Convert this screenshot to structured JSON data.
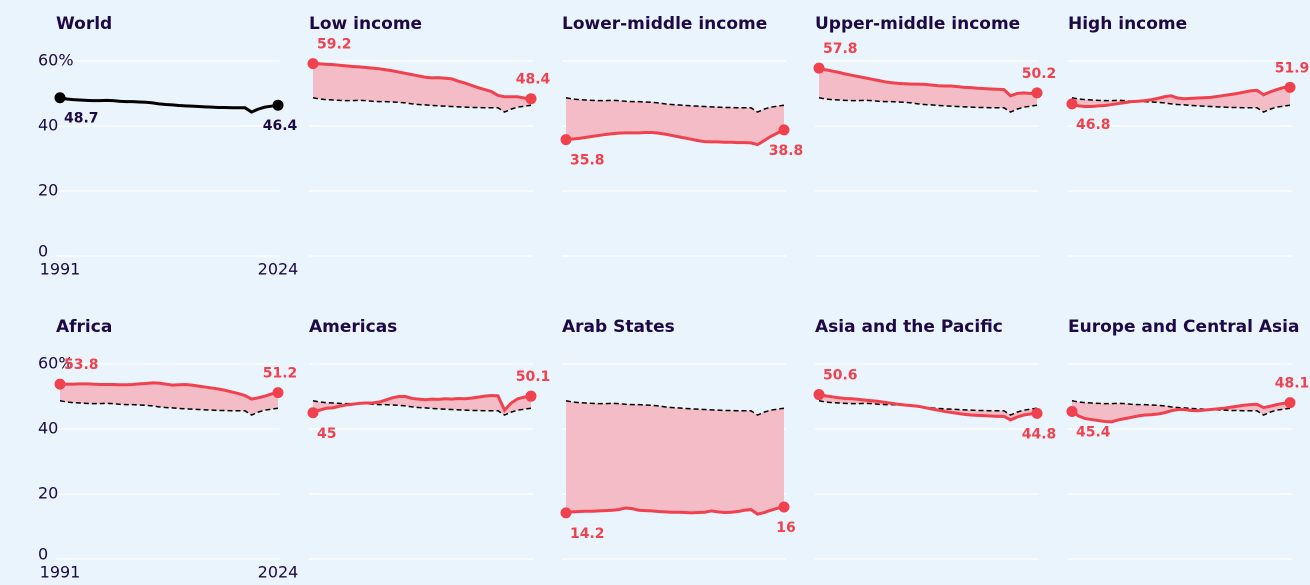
{
  "chart_data": [
    {
      "type": "line",
      "title": "World",
      "tick_labels": true,
      "ylim": [
        0,
        60
      ],
      "yticks": [
        0,
        20,
        40,
        {
          "value": 60,
          "label": "60%"
        }
      ],
      "xlim": [
        1991,
        2024
      ],
      "xticks": [
        1991,
        2024
      ],
      "x": [
        1991,
        1992,
        1993,
        1994,
        1995,
        1996,
        1997,
        1998,
        1999,
        2000,
        2001,
        2002,
        2003,
        2004,
        2005,
        2006,
        2007,
        2008,
        2009,
        2010,
        2011,
        2012,
        2013,
        2014,
        2015,
        2016,
        2017,
        2018,
        2019,
        2020,
        2021,
        2022,
        2023,
        2024
      ],
      "series": [
        {
          "color": "#000000",
          "values": [
            48.7,
            48.3,
            48.1,
            48.0,
            47.9,
            47.8,
            47.8,
            47.9,
            47.8,
            47.6,
            47.5,
            47.5,
            47.4,
            47.3,
            47.1,
            46.8,
            46.6,
            46.5,
            46.3,
            46.2,
            46.1,
            46.0,
            45.9,
            45.8,
            45.7,
            45.7,
            45.6,
            45.6,
            45.6,
            44.3,
            45.2,
            45.8,
            46.1,
            46.4
          ]
        }
      ]
    },
    {
      "type": "line",
      "title": "Low income",
      "reference": true,
      "fill": true,
      "ylim": [
        0,
        60
      ],
      "yticks": [
        0,
        20,
        40,
        60
      ],
      "xlim": [
        1991,
        2024
      ],
      "x": [
        1991,
        1992,
        1993,
        1994,
        1995,
        1996,
        1997,
        1998,
        1999,
        2000,
        2001,
        2002,
        2003,
        2004,
        2005,
        2006,
        2007,
        2008,
        2009,
        2010,
        2011,
        2012,
        2013,
        2014,
        2015,
        2016,
        2017,
        2018,
        2019,
        2020,
        2021,
        2022,
        2023,
        2024
      ],
      "series": [
        {
          "color": "#f0424e",
          "values": [
            59.2,
            59.1,
            59.0,
            58.9,
            58.7,
            58.5,
            58.3,
            58.2,
            58.0,
            57.8,
            57.6,
            57.3,
            57.0,
            56.6,
            56.2,
            55.8,
            55.4,
            55.0,
            54.8,
            54.9,
            54.7,
            54.5,
            53.8,
            53.2,
            52.5,
            51.8,
            51.2,
            50.6,
            49.4,
            49.0,
            49.0,
            49.0,
            48.6,
            48.4
          ]
        }
      ]
    },
    {
      "type": "line",
      "title": "Lower-middle income",
      "reference": true,
      "fill": true,
      "ylim": [
        0,
        60
      ],
      "yticks": [
        0,
        20,
        40,
        60
      ],
      "xlim": [
        1991,
        2024
      ],
      "x": [
        1991,
        1992,
        1993,
        1994,
        1995,
        1996,
        1997,
        1998,
        1999,
        2000,
        2001,
        2002,
        2003,
        2004,
        2005,
        2006,
        2007,
        2008,
        2009,
        2010,
        2011,
        2012,
        2013,
        2014,
        2015,
        2016,
        2017,
        2018,
        2019,
        2020,
        2021,
        2022,
        2023,
        2024
      ],
      "series": [
        {
          "color": "#f0424e",
          "values": [
            35.8,
            36.0,
            36.2,
            36.5,
            36.8,
            37.1,
            37.4,
            37.6,
            37.8,
            37.9,
            37.9,
            37.9,
            38.0,
            38.0,
            37.8,
            37.5,
            37.1,
            36.7,
            36.3,
            35.9,
            35.5,
            35.2,
            35.1,
            35.1,
            35.0,
            35.0,
            34.9,
            34.9,
            34.8,
            34.3,
            35.5,
            36.8,
            37.8,
            38.8
          ]
        }
      ]
    },
    {
      "type": "line",
      "title": "Upper-middle income",
      "reference": true,
      "fill": true,
      "ylim": [
        0,
        60
      ],
      "yticks": [
        0,
        20,
        40,
        60
      ],
      "xlim": [
        1991,
        2024
      ],
      "x": [
        1991,
        1992,
        1993,
        1994,
        1995,
        1996,
        1997,
        1998,
        1999,
        2000,
        2001,
        2002,
        2003,
        2004,
        2005,
        2006,
        2007,
        2008,
        2009,
        2010,
        2011,
        2012,
        2013,
        2014,
        2015,
        2016,
        2017,
        2018,
        2019,
        2020,
        2021,
        2022,
        2023,
        2024
      ],
      "series": [
        {
          "color": "#f0424e",
          "values": [
            57.8,
            57.3,
            56.9,
            56.5,
            56.0,
            55.6,
            55.2,
            54.8,
            54.4,
            54.0,
            53.6,
            53.3,
            53.1,
            53.0,
            52.9,
            52.9,
            52.8,
            52.6,
            52.4,
            52.3,
            52.3,
            52.1,
            51.9,
            51.8,
            51.6,
            51.5,
            51.4,
            51.3,
            51.2,
            49.3,
            50.0,
            50.2,
            50.0,
            50.2
          ]
        }
      ]
    },
    {
      "type": "line",
      "title": "High income",
      "reference": true,
      "fill": true,
      "ylim": [
        0,
        60
      ],
      "yticks": [
        0,
        20,
        40,
        60
      ],
      "xlim": [
        1991,
        2024
      ],
      "x": [
        1991,
        1992,
        1993,
        1994,
        1995,
        1996,
        1997,
        1998,
        1999,
        2000,
        2001,
        2002,
        2003,
        2004,
        2005,
        2006,
        2007,
        2008,
        2009,
        2010,
        2011,
        2012,
        2013,
        2014,
        2015,
        2016,
        2017,
        2018,
        2019,
        2020,
        2021,
        2022,
        2023,
        2024
      ],
      "series": [
        {
          "color": "#f0424e",
          "values": [
            46.8,
            46.2,
            46.0,
            46.0,
            46.2,
            46.3,
            46.6,
            46.9,
            47.2,
            47.5,
            47.6,
            47.8,
            48.1,
            48.5,
            49.0,
            49.3,
            48.6,
            48.4,
            48.5,
            48.6,
            48.7,
            48.8,
            49.1,
            49.4,
            49.7,
            50.0,
            50.4,
            50.8,
            51.0,
            49.6,
            50.5,
            51.2,
            51.8,
            51.9
          ]
        }
      ]
    },
    {
      "type": "line",
      "title": "Africa",
      "tick_labels": true,
      "reference": true,
      "fill": true,
      "ylim": [
        0,
        60
      ],
      "yticks": [
        0,
        20,
        40,
        {
          "value": 60,
          "label": "60%"
        }
      ],
      "xlim": [
        1991,
        2024
      ],
      "xticks": [
        1991,
        2024
      ],
      "x": [
        1991,
        1992,
        1993,
        1994,
        1995,
        1996,
        1997,
        1998,
        1999,
        2000,
        2001,
        2002,
        2003,
        2004,
        2005,
        2006,
        2007,
        2008,
        2009,
        2010,
        2011,
        2012,
        2013,
        2014,
        2015,
        2016,
        2017,
        2018,
        2019,
        2020,
        2021,
        2022,
        2023,
        2024
      ],
      "series": [
        {
          "color": "#f0424e",
          "values": [
            53.8,
            53.8,
            53.8,
            53.9,
            53.9,
            53.8,
            53.7,
            53.7,
            53.7,
            53.6,
            53.6,
            53.7,
            53.9,
            54.0,
            54.2,
            54.1,
            53.8,
            53.5,
            53.6,
            53.7,
            53.5,
            53.2,
            52.9,
            52.6,
            52.3,
            51.9,
            51.4,
            50.9,
            50.3,
            49.2,
            49.6,
            50.1,
            50.8,
            51.2
          ]
        }
      ]
    },
    {
      "type": "line",
      "title": "Americas",
      "reference": true,
      "fill": true,
      "ylim": [
        0,
        60
      ],
      "yticks": [
        0,
        20,
        40,
        60
      ],
      "xlim": [
        1991,
        2024
      ],
      "x": [
        1991,
        1992,
        1993,
        1994,
        1995,
        1996,
        1997,
        1998,
        1999,
        2000,
        2001,
        2002,
        2003,
        2004,
        2005,
        2006,
        2007,
        2008,
        2009,
        2010,
        2011,
        2012,
        2013,
        2014,
        2015,
        2016,
        2017,
        2018,
        2019,
        2020,
        2021,
        2022,
        2023,
        2024
      ],
      "series": [
        {
          "color": "#f0424e",
          "values": [
            45.0,
            45.8,
            46.4,
            46.5,
            47.0,
            47.4,
            47.6,
            47.9,
            48.0,
            48.0,
            48.3,
            48.9,
            49.6,
            50.0,
            50.0,
            49.4,
            49.2,
            49.0,
            49.2,
            49.1,
            49.3,
            49.2,
            49.4,
            49.3,
            49.5,
            49.8,
            50.1,
            50.3,
            50.2,
            45.8,
            48.0,
            49.3,
            49.8,
            50.1
          ]
        }
      ]
    },
    {
      "type": "line",
      "title": "Arab States",
      "reference": true,
      "fill": true,
      "ylim": [
        0,
        60
      ],
      "yticks": [
        0,
        20,
        40,
        60
      ],
      "xlim": [
        1991,
        2024
      ],
      "x": [
        1991,
        1992,
        1993,
        1994,
        1995,
        1996,
        1997,
        1998,
        1999,
        2000,
        2001,
        2002,
        2003,
        2004,
        2005,
        2006,
        2007,
        2008,
        2009,
        2010,
        2011,
        2012,
        2013,
        2014,
        2015,
        2016,
        2017,
        2018,
        2019,
        2020,
        2021,
        2022,
        2023,
        2024
      ],
      "series": [
        {
          "color": "#f0424e",
          "values": [
            14.2,
            14.5,
            14.6,
            14.7,
            14.7,
            14.8,
            14.9,
            15.0,
            15.2,
            15.7,
            15.5,
            15.0,
            14.9,
            14.8,
            14.6,
            14.5,
            14.4,
            14.4,
            14.3,
            14.2,
            14.3,
            14.4,
            14.8,
            14.5,
            14.3,
            14.4,
            14.6,
            15.0,
            15.2,
            13.8,
            14.3,
            15.0,
            15.6,
            16.0
          ]
        }
      ]
    },
    {
      "type": "line",
      "title": "Asia and the Pacific",
      "reference": true,
      "fill": true,
      "ylim": [
        0,
        60
      ],
      "yticks": [
        0,
        20,
        40,
        60
      ],
      "xlim": [
        1991,
        2024
      ],
      "x": [
        1991,
        1992,
        1993,
        1994,
        1995,
        1996,
        1997,
        1998,
        1999,
        2000,
        2001,
        2002,
        2003,
        2004,
        2005,
        2006,
        2007,
        2008,
        2009,
        2010,
        2011,
        2012,
        2013,
        2014,
        2015,
        2016,
        2017,
        2018,
        2019,
        2020,
        2021,
        2022,
        2023,
        2024
      ],
      "series": [
        {
          "color": "#f0424e",
          "values": [
            50.6,
            50.2,
            49.9,
            49.6,
            49.4,
            49.3,
            49.1,
            48.9,
            48.7,
            48.5,
            48.2,
            47.9,
            47.6,
            47.4,
            47.2,
            47.0,
            46.6,
            46.2,
            45.8,
            45.4,
            45.1,
            44.8,
            44.5,
            44.3,
            44.2,
            44.1,
            44.0,
            43.9,
            43.9,
            42.8,
            43.7,
            44.3,
            44.6,
            44.8
          ]
        }
      ]
    },
    {
      "type": "line",
      "title": "Europe and Central Asia",
      "reference": true,
      "fill": true,
      "ylim": [
        0,
        60
      ],
      "yticks": [
        0,
        20,
        40,
        60
      ],
      "xlim": [
        1991,
        2024
      ],
      "x": [
        1991,
        1992,
        1993,
        1994,
        1995,
        1996,
        1997,
        1998,
        1999,
        2000,
        2001,
        2002,
        2003,
        2004,
        2005,
        2006,
        2007,
        2008,
        2009,
        2010,
        2011,
        2012,
        2013,
        2014,
        2015,
        2016,
        2017,
        2018,
        2019,
        2020,
        2021,
        2022,
        2023,
        2024
      ],
      "series": [
        {
          "color": "#f0424e",
          "values": [
            45.4,
            44.0,
            43.2,
            42.9,
            42.6,
            42.3,
            42.2,
            42.8,
            43.2,
            43.6,
            44.0,
            44.3,
            44.4,
            44.6,
            45.0,
            45.6,
            46.0,
            46.0,
            45.7,
            45.6,
            45.8,
            46.0,
            46.2,
            46.4,
            46.7,
            47.0,
            47.3,
            47.5,
            47.6,
            46.6,
            47.0,
            47.5,
            47.9,
            48.1
          ]
        }
      ]
    }
  ]
}
